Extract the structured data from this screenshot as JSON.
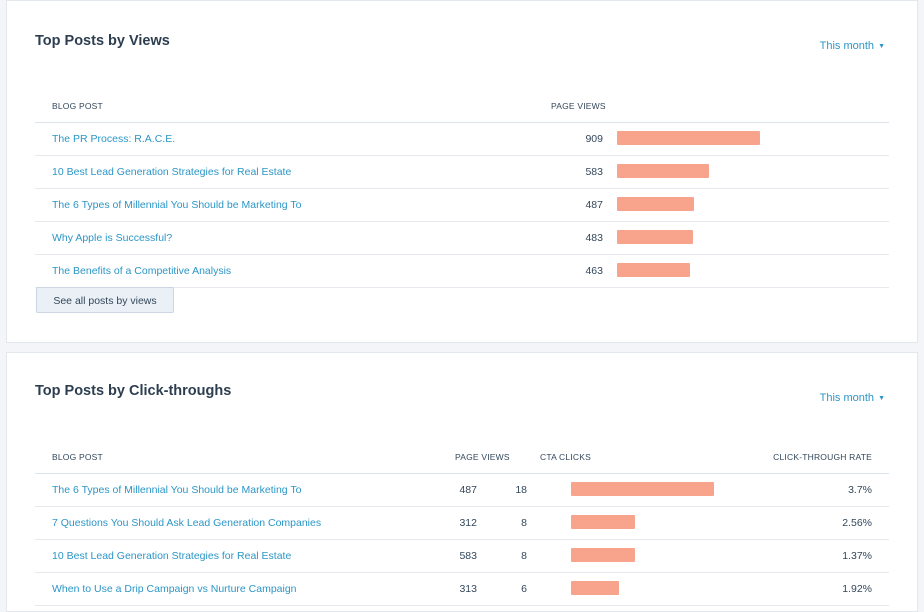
{
  "views_card": {
    "title": "Top Posts by Views",
    "period": "This month",
    "columns": {
      "post": "BLOG POST",
      "views": "PAGE VIEWS"
    },
    "rows": [
      {
        "title": "The PR Process: R.A.C.E.",
        "views": 909
      },
      {
        "title": "10 Best Lead Generation Strategies for Real Estate",
        "views": 583
      },
      {
        "title": "The 6 Types of Millennial You Should be Marketing To",
        "views": 487
      },
      {
        "title": "Why Apple is Successful?",
        "views": 483
      },
      {
        "title": "The Benefits of a Competitive Analysis",
        "views": 463
      }
    ],
    "button_label": "See all posts by views",
    "bar_color": "#f8a48c"
  },
  "clicks_card": {
    "title": "Top Posts by Click-throughs",
    "period": "This month",
    "columns": {
      "post": "BLOG POST",
      "views": "PAGE VIEWS",
      "clicks": "CTA CLICKS",
      "rate": "CLICK-THROUGH RATE"
    },
    "rows": [
      {
        "title": "The 6 Types of Millennial You Should be Marketing To",
        "views": 487,
        "clicks": 18,
        "rate": "3.7%"
      },
      {
        "title": "7 Questions You Should Ask Lead Generation Companies",
        "views": 312,
        "clicks": 8,
        "rate": "2.56%"
      },
      {
        "title": "10 Best Lead Generation Strategies for Real Estate",
        "views": 583,
        "clicks": 8,
        "rate": "1.37%"
      },
      {
        "title": "When to Use a Drip Campaign vs Nurture Campaign",
        "views": 313,
        "clicks": 6,
        "rate": "1.92%"
      }
    ],
    "bar_color": "#f8a48c"
  },
  "accent_color": "#2b96c7"
}
